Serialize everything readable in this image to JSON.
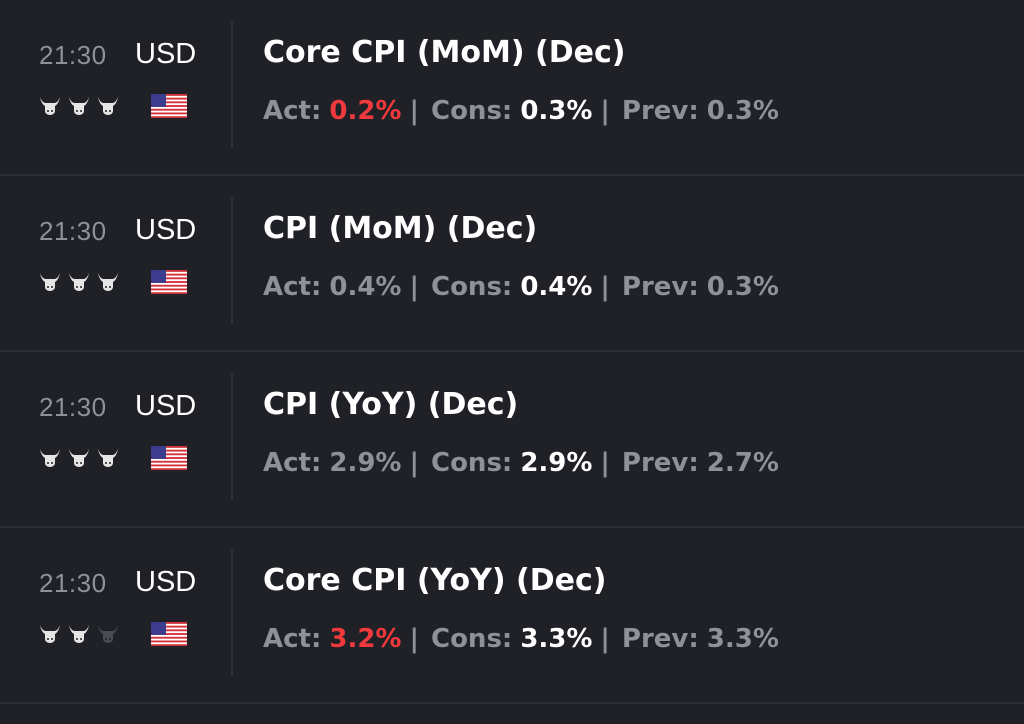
{
  "colors": {
    "background": "#1f2127",
    "muted_text": "#8e9198",
    "primary_text": "#ffffff",
    "negative": "#f0393c",
    "bull_active": "#e6e6e6",
    "bull_inactive": "#4a4c52"
  },
  "events": [
    {
      "time": "21:30",
      "currency": "USD",
      "flag_icon": "us-flag-icon",
      "importance": [
        true,
        true,
        true
      ],
      "title": "Core CPI (MoM) (Dec)",
      "actual_label": "Act:",
      "actual": "0.2%",
      "actual_color": "red",
      "consensus_label": "Cons:",
      "consensus": "0.3%",
      "previous_label": "Prev:",
      "previous": "0.3%",
      "separator": "|"
    },
    {
      "time": "21:30",
      "currency": "USD",
      "flag_icon": "us-flag-icon",
      "importance": [
        true,
        true,
        true
      ],
      "title": "CPI (MoM) (Dec)",
      "actual_label": "Act:",
      "actual": "0.4%",
      "actual_color": "gray",
      "consensus_label": "Cons:",
      "consensus": "0.4%",
      "previous_label": "Prev:",
      "previous": "0.3%",
      "separator": "|"
    },
    {
      "time": "21:30",
      "currency": "USD",
      "flag_icon": "us-flag-icon",
      "importance": [
        true,
        true,
        true
      ],
      "title": "CPI (YoY) (Dec)",
      "actual_label": "Act:",
      "actual": "2.9%",
      "actual_color": "gray",
      "consensus_label": "Cons:",
      "consensus": "2.9%",
      "previous_label": "Prev:",
      "previous": "2.7%",
      "separator": "|"
    },
    {
      "time": "21:30",
      "currency": "USD",
      "flag_icon": "us-flag-icon",
      "importance": [
        true,
        true,
        false
      ],
      "title": "Core CPI (YoY) (Dec)",
      "actual_label": "Act:",
      "actual": "3.2%",
      "actual_color": "red",
      "consensus_label": "Cons:",
      "consensus": "3.3%",
      "previous_label": "Prev:",
      "previous": "3.3%",
      "separator": "|"
    }
  ]
}
